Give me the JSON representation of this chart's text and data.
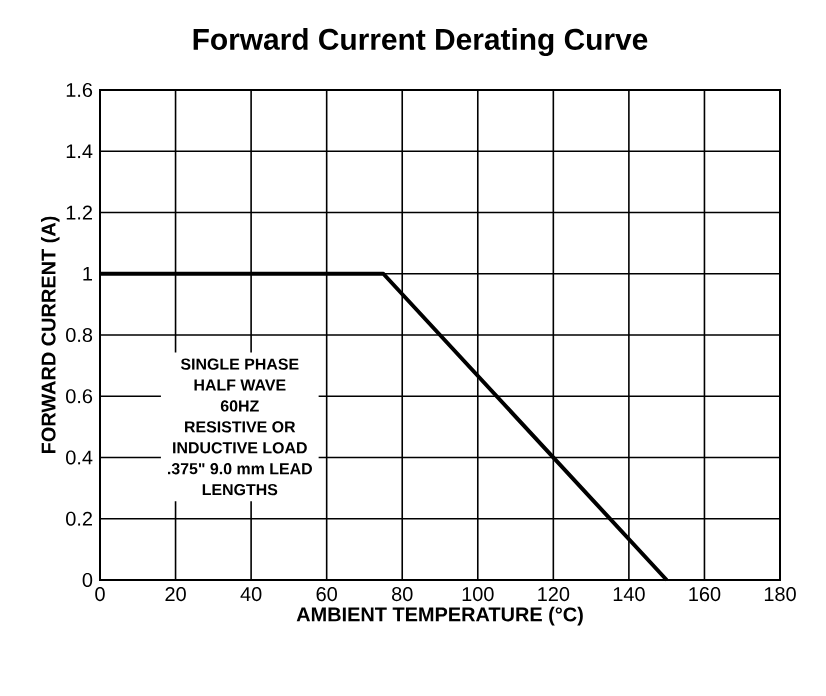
{
  "chart_data": {
    "type": "line",
    "title": "Forward Current Derating Curve",
    "xlabel": "AMBIENT TEMPERATURE (°C)",
    "ylabel": "FORWARD CURRENT (A)",
    "x": [
      0,
      75,
      150
    ],
    "values": [
      1,
      1,
      0
    ],
    "color": "#000000",
    "xlim": [
      0,
      180
    ],
    "ylim": [
      0,
      1.6
    ],
    "xticks": [
      0,
      20,
      40,
      60,
      80,
      100,
      120,
      140,
      160,
      180
    ],
    "yticks": [
      0,
      0.2,
      0.4,
      0.6,
      0.8,
      1,
      1.2,
      1.4,
      1.6
    ],
    "grid": true,
    "marker": "none",
    "line_style": "solid",
    "annotations": [
      "SINGLE PHASE",
      "HALF WAVE",
      "60HZ",
      "RESISTIVE OR",
      "INDUCTIVE LOAD",
      ".375\" 9.0 mm LEAD",
      "LENGTHS"
    ]
  }
}
